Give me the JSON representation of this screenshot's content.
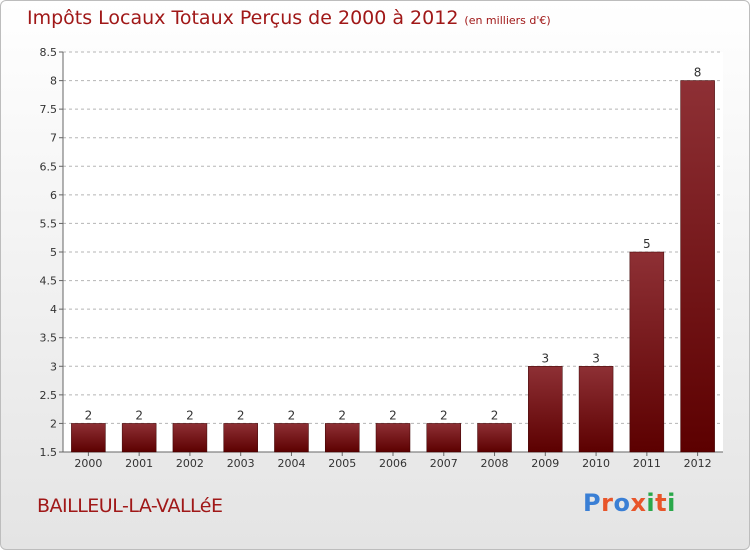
{
  "header": {
    "title": "Impôts Locaux Totaux Perçus de 2000 à 2012",
    "unit": "(en milliers d'€)"
  },
  "commune": "BAILLEUL-LA-VALLéE",
  "logo": {
    "text": "Proxiti",
    "letter_colors": [
      "#3a7fd5",
      "#e8552a",
      "#3a7fd5",
      "#e8552a",
      "#2aa84a",
      "#e8552a",
      "#2aa84a"
    ]
  },
  "colors": {
    "bar_light": "#8e3035",
    "bar_dark": "#5c0000",
    "title": "#a01818",
    "grid": "#b5b5b5"
  },
  "chart_data": {
    "type": "bar",
    "categories": [
      "2000",
      "2001",
      "2002",
      "2003",
      "2004",
      "2005",
      "2006",
      "2007",
      "2008",
      "2009",
      "2010",
      "2011",
      "2012"
    ],
    "values": [
      2,
      2,
      2,
      2,
      2,
      2,
      2,
      2,
      2,
      3,
      3,
      5,
      8
    ],
    "data_labels": [
      "2",
      "2",
      "2",
      "2",
      "2",
      "2",
      "2",
      "2",
      "2",
      "3",
      "3",
      "5",
      "8"
    ],
    "ylim": [
      1.5,
      8.5
    ],
    "yticks": [
      "1.5",
      "2",
      "2.5",
      "3",
      "3.5",
      "4",
      "4.5",
      "5",
      "5.5",
      "6",
      "6.5",
      "7",
      "7.5",
      "8",
      "8.5"
    ],
    "grid": "horizontal dashed",
    "title": "Impôts Locaux Totaux Perçus de 2000 à 2012",
    "xlabel": "",
    "ylabel": ""
  }
}
